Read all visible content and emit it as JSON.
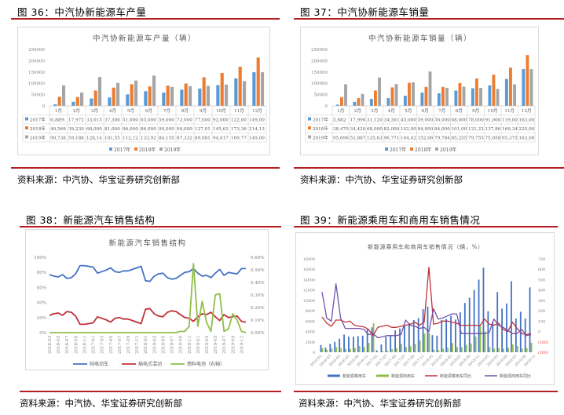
{
  "figures": [
    {
      "title": "图 36：中汽协新能源车产量",
      "source": "资料来源：中汽协、华宝证券研究创新部"
    },
    {
      "title": "图 37：中汽协新能源车销量",
      "source": "资料来源：中汽协、华宝证券研究创新部"
    },
    {
      "title": "图 38：新能源汽车销售结构",
      "source": "资料来源：中汽协、华宝证券研究创新部"
    },
    {
      "title": "图 39：新能源乘用车和商用车销售情况",
      "source": "资料来源：中汽协、华宝证券研究创新部"
    }
  ],
  "colors": {
    "blue": "#5b9bd5",
    "orange": "#ed7d31",
    "gray": "#a5a5a5",
    "line_blue": "#4472c4",
    "line_red": "#c0313a",
    "line_green": "#8fbf4a",
    "purple": "#7352a8",
    "rule_red": "#b51e22"
  },
  "chart_data": [
    {
      "type": "bar",
      "title": "中汽协新能源车产量（辆）",
      "categories": [
        "1月",
        "2月",
        "3月",
        "4月",
        "5月",
        "6月",
        "7月",
        "8月",
        "9月",
        "10月",
        "11月",
        "12月"
      ],
      "series": [
        {
          "name": "2017年",
          "values": [
            6889,
            17972,
            33015,
            37306,
            51000,
            65000,
            59000,
            72000,
            77000,
            92000,
            122000,
            149000
          ],
          "labels": [
            "6,889.",
            "17,972",
            "33,015",
            "37,306",
            "51,000",
            "65,000",
            "59,000",
            "72,000",
            "77,000",
            "92,000",
            "122,00",
            "149,00"
          ]
        },
        {
          "name": "2018年",
          "values": [
            40569,
            39230,
            68000,
            81000,
            96000,
            86000,
            90000,
            99000,
            127010,
            145620,
            173360,
            214130
          ],
          "labels": [
            "40,569",
            "39,230",
            "68,000",
            "81,000",
            "96,000",
            "86,000",
            "90,000",
            "99,000",
            "127,01",
            "145,62",
            "173,36",
            "214,13"
          ]
        },
        {
          "name": "2019年",
          "values": [
            90738,
            59188,
            128140,
            101550,
            112120,
            133920,
            84155,
            87332,
            89081,
            94617,
            109770,
            149000
          ],
          "labels": [
            "90,738",
            "59,188",
            "128,14",
            "101,55",
            "112,12",
            "133,92",
            "84,155",
            "87,332",
            "89,081",
            "94,617",
            "109,77",
            "149,00"
          ]
        }
      ],
      "yticks": [
        "250000",
        "200000",
        "150000",
        "100000",
        "50000",
        "0"
      ],
      "ylim": [
        0,
        250000
      ],
      "legend": [
        "2017年",
        "2018年",
        "2019年"
      ],
      "legend_position": "bottom",
      "grid": false
    },
    {
      "type": "bar",
      "title": "中汽协新能源车销量（辆）",
      "categories": [
        "1月",
        "2月",
        "3月",
        "4月",
        "5月",
        "6月",
        "7月",
        "8月",
        "9月",
        "10月",
        "11月",
        "12月"
      ],
      "series": [
        {
          "name": "2017年",
          "values": [
            5682,
            17996,
            31120,
            34361,
            45000,
            59000,
            56000,
            68000,
            78000,
            91000,
            119000,
            163000
          ],
          "labels": [
            "5,682",
            "17,996",
            "31,120",
            "34,361",
            "45,000",
            "59,000",
            "56,000",
            "68,000",
            "78,000",
            "91,000",
            "119,00",
            "163,00"
          ]
        },
        {
          "name": "2018年",
          "values": [
            38470,
            34420,
            68000,
            82000,
            102000,
            84000,
            84000,
            101000,
            121220,
            137860,
            169340,
            225000
          ],
          "labels": [
            "38,470",
            "34,420",
            "68,000",
            "82,000",
            "102,00",
            "84,000",
            "84,000",
            "101,00",
            "121,22",
            "137,86",
            "169,34",
            "225,00"
          ]
        },
        {
          "name": "2019年",
          "values": [
            95696,
            52867,
            125630,
            96771,
            104420,
            152060,
            79784,
            85255,
            79755,
            75058,
            95375,
            163000
          ],
          "labels": [
            "95,696",
            "52,867",
            "125,63",
            "96,771",
            "104,42",
            "152,06",
            "79,784",
            "85,255",
            "79,755",
            "75,058",
            "95,375",
            "163,00"
          ]
        }
      ],
      "yticks": [
        "250000",
        "200000",
        "150000",
        "100000",
        "50000",
        "0"
      ],
      "ylim": [
        0,
        250000
      ],
      "legend": [
        "2017年",
        "2018年",
        "2019年"
      ],
      "legend_position": "bottom",
      "grid": false
    },
    {
      "type": "line",
      "title": "新能源汽车销售结构",
      "x": [
        "2016-03",
        "2016-04",
        "2016-05",
        "2016-06",
        "2016-07",
        "2016-08",
        "2016-09",
        "2016-10",
        "2016-11",
        "2016-12",
        "2017-01",
        "2017-02",
        "2017-03",
        "2017-04",
        "2017-05",
        "2017-06",
        "2017-07",
        "2017-08",
        "2017-09",
        "2017-10",
        "2017-11",
        "2017-12",
        "2018-01",
        "2018-02",
        "2018-03",
        "2018-04",
        "2018-05",
        "2018-06",
        "2018-07",
        "2018-08",
        "2018-09",
        "2018-10",
        "2018-11",
        "2018-12",
        "2019-01",
        "2019-02",
        "2019-03",
        "2019-04",
        "2019-05",
        "2019-06",
        "2019-07",
        "2019-08",
        "2019-09",
        "2019-10",
        "2019-11",
        "2019-12"
      ],
      "xtick_labels": [
        "2016-03",
        "2016-05",
        "2016-07",
        "2016-09",
        "2016-11",
        "2017-01",
        "2017-03",
        "2017-05",
        "2017-07",
        "2017-09",
        "2017-11",
        "2018-01",
        "2018-03",
        "2018-05",
        "2018-07",
        "2018-09",
        "2018-11",
        "2019-01",
        "2019-03",
        "2019-05",
        "2019-07",
        "2019-09",
        "2019-11"
      ],
      "series": [
        {
          "name": "纯电动车",
          "axis": "left",
          "values": [
            77,
            75,
            74,
            77,
            72,
            73,
            78,
            89,
            89,
            88,
            87,
            79,
            81,
            83,
            86,
            81,
            80,
            82,
            82,
            84,
            86,
            88,
            69,
            68,
            75,
            78,
            79,
            73,
            71,
            72,
            76,
            80,
            81,
            85,
            79,
            75,
            76,
            73,
            79,
            84,
            76,
            80,
            79,
            78,
            85,
            85
          ]
        },
        {
          "name": "插电式混动",
          "axis": "left",
          "values": [
            23,
            25,
            26,
            23,
            28,
            27,
            22,
            11,
            11,
            12,
            13,
            21,
            19,
            17,
            14,
            19,
            20,
            18,
            18,
            16,
            14,
            12,
            31,
            32,
            25,
            22,
            21,
            27,
            29,
            28,
            24,
            20,
            19,
            15,
            21,
            25,
            24,
            27,
            21,
            16,
            24,
            20,
            21,
            22,
            15,
            14
          ]
        },
        {
          "name": "燃料电池（右轴）",
          "axis": "right",
          "values": [
            0,
            0,
            0,
            0,
            0,
            0,
            0,
            0,
            0,
            0,
            0,
            0,
            0,
            0,
            0,
            0,
            0,
            0,
            0,
            0,
            0,
            0,
            0,
            0,
            0,
            0,
            0,
            0,
            0,
            0,
            0.01,
            0.01,
            0.05,
            0.55,
            0.05,
            0.25,
            0.08,
            0.01,
            0.3,
            0.31,
            0.01,
            0.03,
            0.15,
            0.1,
            0.01,
            0.0
          ]
        }
      ],
      "yticks_left": [
        "100%",
        "80%",
        "60%",
        "40%",
        "20%",
        "0%"
      ],
      "yticks_right": [
        "0.60%",
        "0.50%",
        "0.40%",
        "0.30%",
        "0.20%",
        "0.10%",
        "0.00%"
      ],
      "ylim_left": [
        0,
        100
      ],
      "ylim_right": [
        0,
        0.6
      ],
      "legend": [
        "纯电动车",
        "插电式混动",
        "燃料电池（右轴）"
      ],
      "legend_position": "bottom",
      "grid": false
    },
    {
      "type": "bar+line",
      "title": "新能源乘用车和商用车销售情况（辆，%）",
      "x_count": 46,
      "xtick_labels": [
        "2016-01",
        "2016-03",
        "2016-05",
        "2016-07",
        "2016-09",
        "2016-11",
        "2017-01",
        "2017-03",
        "2017-05",
        "2017-07",
        "2017-09",
        "2017-11",
        "2018-01",
        "2018-03",
        "2018-05",
        "2018-07",
        "2018-09",
        "2018-11",
        "2019-01",
        "2019-03",
        "2019-05",
        "2019-07",
        "2019-09",
        "2019-11"
      ],
      "series": [
        {
          "name": "新能源乘用车",
          "type": "bar",
          "axis": "left",
          "values": [
            1400,
            900,
            1600,
            2000,
            2600,
            3400,
            3000,
            3000,
            3100,
            3200,
            4400,
            4800,
            400,
            1500,
            3000,
            3300,
            4200,
            4600,
            5200,
            5600,
            6200,
            6600,
            8300,
            8800,
            3300,
            3200,
            6200,
            6400,
            7000,
            6300,
            7700,
            9500,
            10500,
            12000,
            14000,
            16300,
            7900,
            5800,
            11600,
            8400,
            9400,
            13700,
            6500,
            7800,
            6500,
            12500
          ]
        },
        {
          "name": "新能源商用车",
          "type": "bar",
          "axis": "left",
          "values": [
            800,
            500,
            700,
            1000,
            800,
            700,
            600,
            800,
            1200,
            1000,
            1800,
            5600,
            100,
            200,
            300,
            600,
            800,
            1600,
            1000,
            1200,
            1600,
            2300,
            3600,
            3700,
            500,
            400,
            700,
            900,
            1800,
            1000,
            1000,
            1400,
            1700,
            3000,
            5000,
            4000,
            1000,
            700,
            800,
            700,
            900,
            1500,
            1200,
            700,
            800,
            1800
          ]
        },
        {
          "name": "新能源乘用车同比",
          "type": "line",
          "axis": "right",
          "values": [
            140,
            80,
            50,
            110,
            110,
            90,
            100,
            60,
            50,
            45,
            20,
            -40,
            40,
            50,
            60,
            40,
            40,
            50,
            60,
            70,
            90,
            60,
            90,
            620,
            70,
            80,
            100,
            100,
            90,
            80,
            60,
            60,
            60,
            60,
            55,
            120,
            70,
            60,
            80,
            20,
            0,
            90,
            30,
            -20,
            -30,
            -20
          ]
        },
        {
          "name": "新能源商用车同比",
          "type": "line",
          "axis": "right",
          "values": [
            380,
            130,
            100,
            460,
            130,
            30,
            30,
            30,
            30,
            20,
            -30,
            -20,
            -60,
            -50,
            -40,
            -40,
            -40,
            -30,
            110,
            60,
            50,
            30,
            40,
            0,
            220,
            120,
            130,
            150,
            170,
            170,
            -20,
            -20,
            -20,
            -20,
            -20,
            -20,
            -10,
            120,
            60,
            40,
            10,
            -20,
            -20,
            20,
            -40,
            -30
          ]
        }
      ],
      "yticks_left": [
        "18000",
        "16000",
        "14000",
        "12000",
        "10000",
        "8000",
        "6000",
        "4000",
        "2000",
        "0"
      ],
      "yticks_right": [
        "700",
        "600",
        "500",
        "400",
        "300",
        "200",
        "100",
        "0",
        "(100)",
        "(200)"
      ],
      "ylim_left": [
        0,
        18000
      ],
      "ylim_right": [
        -200,
        700
      ],
      "legend": [
        "新能源乘用车",
        "新能源商用车",
        "新能源乘用车同比",
        "新能源商用车同比"
      ],
      "legend_position": "bottom",
      "grid": false
    }
  ]
}
